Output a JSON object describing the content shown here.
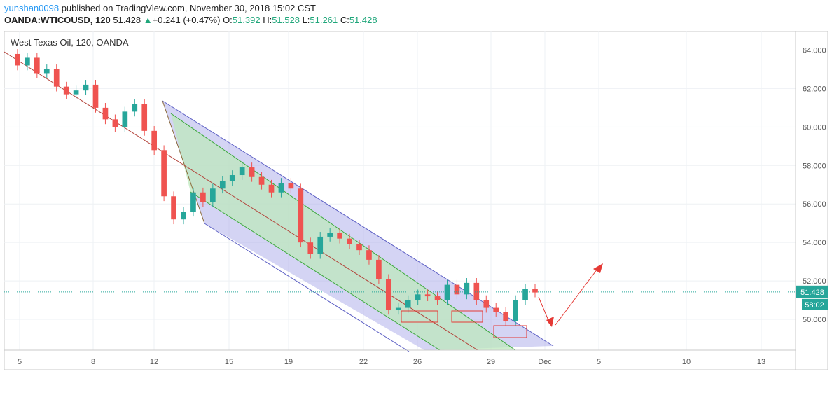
{
  "header": {
    "user": "yunshan0098",
    "published": "published on TradingView.com, November 30, 2018 15:02 CST",
    "symbol": "OANDA:WTICOUSD, 120",
    "last": "51.428",
    "change_arrow": "▲",
    "change": "+0.241 (+0.47%)",
    "o_label": "O:",
    "o": "51.392",
    "h_label": "H:",
    "h": "51.528",
    "l_label": "L:",
    "l": "51.261",
    "c_label": "C:",
    "c": "51.428"
  },
  "chart_data": {
    "type": "candlestick",
    "title": "West Texas Oil, 120, OANDA",
    "x_ticks": [
      "5",
      "8",
      "12",
      "15",
      "19",
      "22",
      "26",
      "29",
      "Dec",
      "5",
      "10",
      "13"
    ],
    "y_ticks": [
      50,
      52,
      54,
      56,
      58,
      60,
      62,
      64
    ],
    "ylim": [
      48.4,
      65.0
    ],
    "last_price_label": "51.428",
    "last_price": 51.428,
    "countdown_label": "58:02",
    "colors": {
      "up": "#26a69a",
      "down": "#ef5350",
      "channel_fill": "#9fa0e6",
      "inner_fill": "#bde8bd",
      "annotation": "#e53935",
      "price_line": "#26a69a"
    },
    "price_path": [
      {
        "date": "Nov 5",
        "price": 63.8
      },
      {
        "date": "Nov 6",
        "price": 63.2
      },
      {
        "date": "Nov 6",
        "price": 63.6
      },
      {
        "date": "Nov 7",
        "price": 62.8
      },
      {
        "date": "Nov 7",
        "price": 63.0
      },
      {
        "date": "Nov 8",
        "price": 62.1
      },
      {
        "date": "Nov 8",
        "price": 61.7
      },
      {
        "date": "Nov 9",
        "price": 61.9
      },
      {
        "date": "Nov 9",
        "price": 62.2
      },
      {
        "date": "Nov 10",
        "price": 61.0
      },
      {
        "date": "Nov 11",
        "price": 60.4
      },
      {
        "date": "Nov 11",
        "price": 60.0
      },
      {
        "date": "Nov 12",
        "price": 60.8
      },
      {
        "date": "Nov 12",
        "price": 61.2
      },
      {
        "date": "Nov 13",
        "price": 59.8
      },
      {
        "date": "Nov 13",
        "price": 58.8
      },
      {
        "date": "Nov 14",
        "price": 56.4
      },
      {
        "date": "Nov 14",
        "price": 55.2
      },
      {
        "date": "Nov 15",
        "price": 55.6
      },
      {
        "date": "Nov 15",
        "price": 56.6
      },
      {
        "date": "Nov 16",
        "price": 56.1
      },
      {
        "date": "Nov 16",
        "price": 56.8
      },
      {
        "date": "Nov 17",
        "price": 57.2
      },
      {
        "date": "Nov 18",
        "price": 57.5
      },
      {
        "date": "Nov 18",
        "price": 57.9
      },
      {
        "date": "Nov 19",
        "price": 57.4
      },
      {
        "date": "Nov 19",
        "price": 57.0
      },
      {
        "date": "Nov 20",
        "price": 56.6
      },
      {
        "date": "Nov 20",
        "price": 57.1
      },
      {
        "date": "Nov 20",
        "price": 56.8
      },
      {
        "date": "Nov 21",
        "price": 54.0
      },
      {
        "date": "Nov 21",
        "price": 53.4
      },
      {
        "date": "Nov 22",
        "price": 54.3
      },
      {
        "date": "Nov 22",
        "price": 54.5
      },
      {
        "date": "Nov 23",
        "price": 54.2
      },
      {
        "date": "Nov 23",
        "price": 53.9
      },
      {
        "date": "Nov 24",
        "price": 53.6
      },
      {
        "date": "Nov 24",
        "price": 53.1
      },
      {
        "date": "Nov 25",
        "price": 52.1
      },
      {
        "date": "Nov 25",
        "price": 50.5
      },
      {
        "date": "Nov 26",
        "price": 50.6
      },
      {
        "date": "Nov 26",
        "price": 51.0
      },
      {
        "date": "Nov 27",
        "price": 51.3
      },
      {
        "date": "Nov 27",
        "price": 51.2
      },
      {
        "date": "Nov 27",
        "price": 51.0
      },
      {
        "date": "Nov 28",
        "price": 51.8
      },
      {
        "date": "Nov 28",
        "price": 51.3
      },
      {
        "date": "Nov 28",
        "price": 51.9
      },
      {
        "date": "Nov 29",
        "price": 51.0
      },
      {
        "date": "Nov 29",
        "price": 50.6
      },
      {
        "date": "Nov 29",
        "price": 50.4
      },
      {
        "date": "Nov 30",
        "price": 49.9
      },
      {
        "date": "Nov 30",
        "price": 51.0
      },
      {
        "date": "Nov 30",
        "price": 51.6
      },
      {
        "date": "Nov 30",
        "price": 51.4
      }
    ]
  },
  "icons": {
    "up_arrow": "triangle-up-icon"
  }
}
